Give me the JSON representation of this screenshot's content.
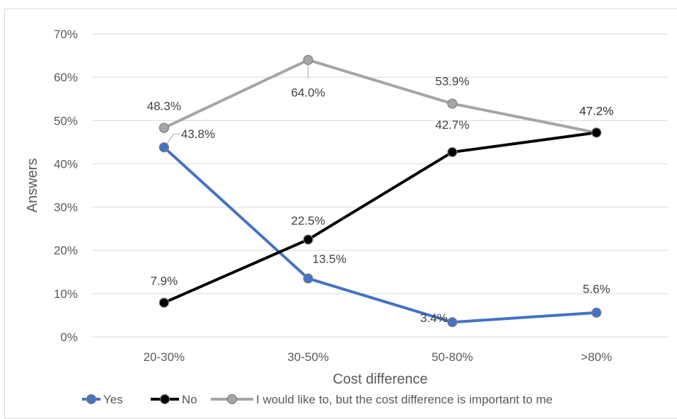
{
  "chart_data": {
    "type": "line",
    "title": "",
    "xlabel": "Cost difference",
    "ylabel": "Answers",
    "categories": [
      "20-30%",
      "30-50%",
      "50-80%",
      ">80%"
    ],
    "y_ticks": [
      "0%",
      "10%",
      "20%",
      "30%",
      "40%",
      "50%",
      "60%",
      "70%"
    ],
    "ylim": [
      0,
      70
    ],
    "grid": true,
    "legend_position": "bottom",
    "series": [
      {
        "name": "Yes",
        "color": "#4472c4",
        "values": [
          43.8,
          13.5,
          3.4,
          5.6
        ],
        "labels": [
          "43.8%",
          "13.5%",
          "3.4%",
          "5.6%"
        ]
      },
      {
        "name": "No",
        "color": "#000000",
        "values": [
          7.9,
          22.5,
          42.7,
          47.2
        ],
        "labels": [
          "7.9%",
          "22.5%",
          "42.7%",
          "47.2%"
        ]
      },
      {
        "name": "I would like to, but the cost difference is important to me",
        "color": "#a5a5a5",
        "values": [
          48.3,
          64.0,
          53.9,
          47.2
        ],
        "labels": [
          "48.3%",
          "64.0%",
          "53.9%",
          "47.2%"
        ]
      }
    ]
  }
}
